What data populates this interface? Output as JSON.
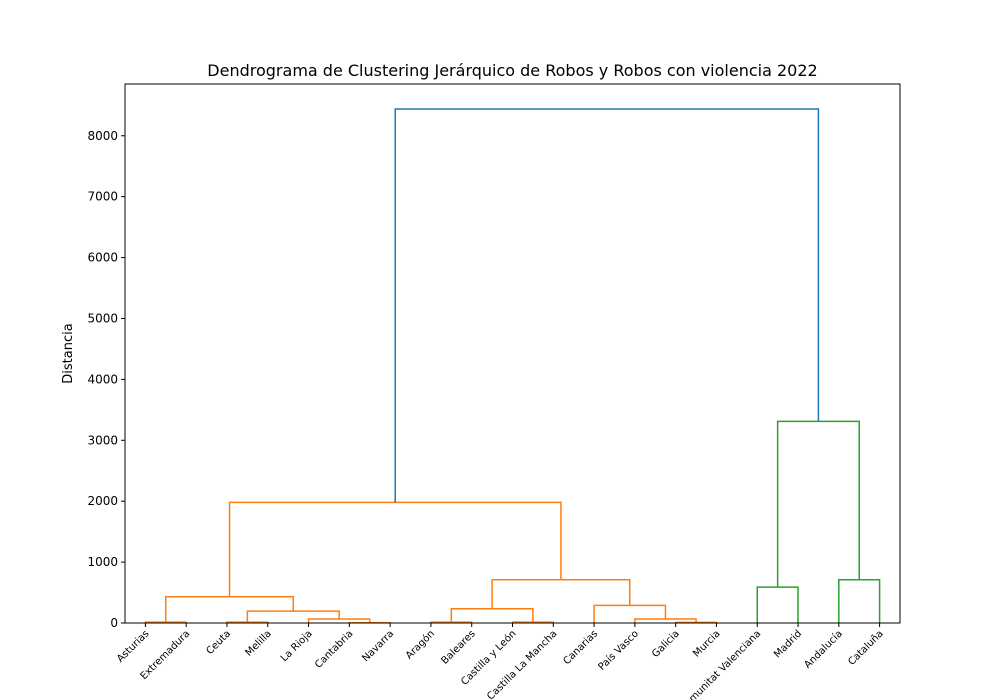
{
  "chart_data": {
    "type": "dendrogram",
    "title": "Dendrograma de Clustering Jerárquico de Robos y Robos con violencia 2022",
    "xlabel": "",
    "ylabel": "Distancia",
    "ylim": [
      0,
      8850
    ],
    "yticks": [
      0,
      1000,
      2000,
      3000,
      4000,
      5000,
      6000,
      7000,
      8000
    ],
    "leaves": [
      "Asturias",
      "Extremadura",
      "Ceuta",
      "Melilla",
      "La Rioja",
      "Cantabria",
      "Navarra",
      "Aragón",
      "Baleares",
      "Castilla y León",
      "Castilla La Mancha",
      "Canarias",
      "País Vasco",
      "Galicia",
      "Murcia",
      "Comunitat Valenciana",
      "Madrid",
      "Andalucía",
      "Cataluña"
    ],
    "links": [
      {
        "a": "L0",
        "b": "L1",
        "height": 15,
        "color": "#ff7f0e"
      },
      {
        "a": "L2",
        "b": "L3",
        "height": 15,
        "color": "#ff7f0e"
      },
      {
        "a": "L5",
        "b": "L6",
        "height": 5,
        "color": "#ff7f0e"
      },
      {
        "a": "L4",
        "b": "N2",
        "height": 65,
        "color": "#ff7f0e"
      },
      {
        "a": "N1",
        "b": "N3",
        "height": 195,
        "color": "#ff7f0e"
      },
      {
        "a": "N0",
        "b": "N4",
        "height": 430,
        "color": "#ff7f0e"
      },
      {
        "a": "L7",
        "b": "L8",
        "height": 15,
        "color": "#ff7f0e"
      },
      {
        "a": "L9",
        "b": "L10",
        "height": 15,
        "color": "#ff7f0e"
      },
      {
        "a": "N6",
        "b": "N7",
        "height": 235,
        "color": "#ff7f0e"
      },
      {
        "a": "L13",
        "b": "L14",
        "height": 10,
        "color": "#ff7f0e"
      },
      {
        "a": "L12",
        "b": "N9",
        "height": 65,
        "color": "#ff7f0e"
      },
      {
        "a": "L11",
        "b": "N10",
        "height": 290,
        "color": "#ff7f0e"
      },
      {
        "a": "N8",
        "b": "N11",
        "height": 710,
        "color": "#ff7f0e"
      },
      {
        "a": "N5",
        "b": "N12",
        "height": 1980,
        "color": "#ff7f0e"
      },
      {
        "a": "L15",
        "b": "L16",
        "height": 590,
        "color": "#2ca02c"
      },
      {
        "a": "L17",
        "b": "L18",
        "height": 710,
        "color": "#2ca02c"
      },
      {
        "a": "N14",
        "b": "N15",
        "height": 3310,
        "color": "#2ca02c"
      },
      {
        "a": "N13",
        "b": "N16",
        "height": 8440,
        "color": "#1f77b4"
      }
    ]
  }
}
